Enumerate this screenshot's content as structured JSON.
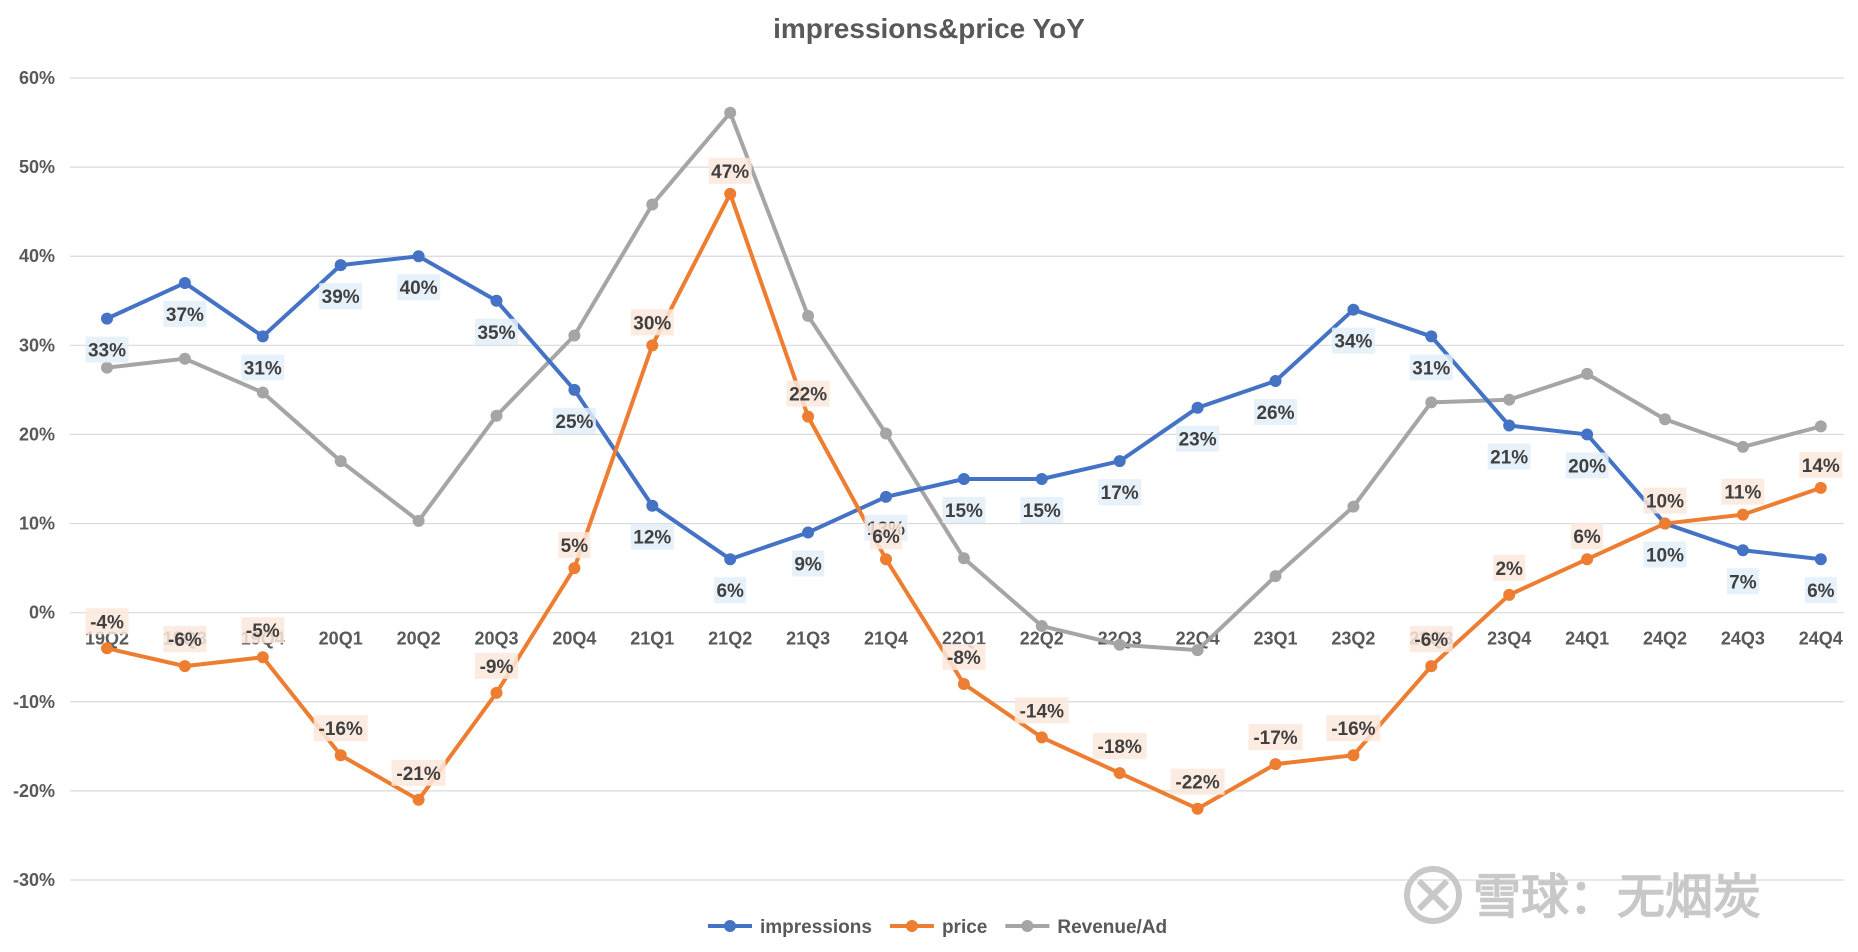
{
  "chart_data": {
    "type": "line",
    "title": "impressions&price YoY",
    "xlabel": "",
    "ylabel": "",
    "categories": [
      "19Q2",
      "19Q3",
      "19Q4",
      "20Q1",
      "20Q2",
      "20Q3",
      "20Q4",
      "21Q1",
      "21Q2",
      "21Q3",
      "21Q4",
      "22Q1",
      "22Q2",
      "22Q3",
      "22Q4",
      "23Q1",
      "23Q2",
      "23Q3",
      "23Q4",
      "24Q1",
      "24Q2",
      "24Q3",
      "24Q4"
    ],
    "ylim": [
      -0.3,
      0.6
    ],
    "ytick_labels": [
      "60%",
      "50%",
      "40%",
      "30%",
      "20%",
      "10%",
      "0%",
      "-10%",
      "-20%",
      "-30%"
    ],
    "grid": true,
    "legend_position": "bottom",
    "series": [
      {
        "name": "impressions",
        "color": "#4472C4",
        "label_bg": "#E3EEF9",
        "values": [
          0.33,
          0.37,
          0.31,
          0.39,
          0.4,
          0.35,
          0.25,
          0.12,
          0.06,
          0.09,
          0.13,
          0.15,
          0.15,
          0.17,
          0.23,
          0.26,
          0.34,
          0.31,
          0.21,
          0.2,
          0.1,
          0.07,
          0.06
        ],
        "labels": [
          "33%",
          "37%",
          "31%",
          "39%",
          "40%",
          "35%",
          "25%",
          "12%",
          "6%",
          "9%",
          "13%",
          "15%",
          "15%",
          "17%",
          "23%",
          "26%",
          "34%",
          "31%",
          "21%",
          "20%",
          "10%",
          "7%",
          "6%"
        ]
      },
      {
        "name": "price",
        "color": "#ED7D31",
        "label_bg": "#FCE8DC",
        "values": [
          -0.04,
          -0.06,
          -0.05,
          -0.16,
          -0.21,
          -0.09,
          0.05,
          0.3,
          0.47,
          0.22,
          0.06,
          -0.08,
          -0.14,
          -0.18,
          -0.22,
          -0.17,
          -0.16,
          -0.06,
          0.02,
          0.06,
          0.1,
          0.11,
          0.14
        ],
        "labels": [
          "-4%",
          "-6%",
          "-5%",
          "-16%",
          "-21%",
          "-9%",
          "5%",
          "30%",
          "47%",
          "22%",
          "6%",
          "-8%",
          "-14%",
          "-18%",
          "-22%",
          "-17%",
          "-16%",
          "-6%",
          "2%",
          "6%",
          "10%",
          "11%",
          "14%"
        ]
      },
      {
        "name": "Revenue/Ad",
        "color": "#A5A5A5",
        "values": [
          0.275,
          0.285,
          0.247,
          0.17,
          0.103,
          0.221,
          0.311,
          0.458,
          0.561,
          0.333,
          0.201,
          0.061,
          -0.015,
          -0.036,
          -0.042,
          0.041,
          0.119,
          0.236,
          0.239,
          0.268,
          0.217,
          0.186,
          0.209
        ]
      }
    ]
  },
  "watermark": {
    "text": "雪球：无烟炭",
    "icon": "snowball-logo-icon"
  }
}
